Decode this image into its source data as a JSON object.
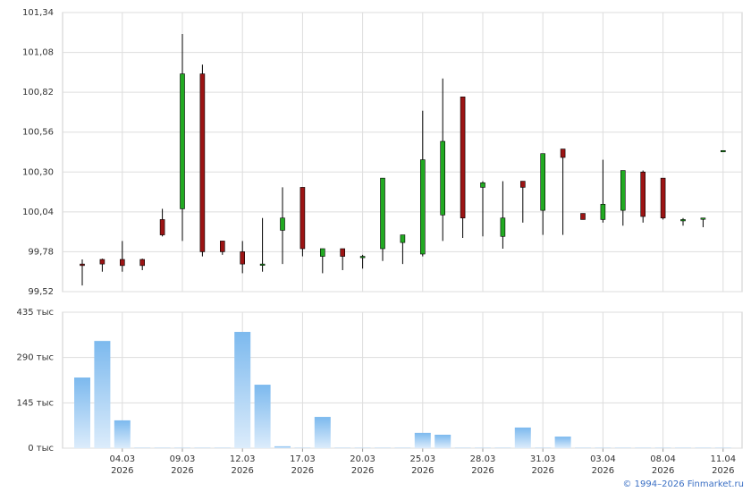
{
  "chart_data": {
    "type": "candlestick",
    "categories": [
      null,
      null,
      "04.03\n2026",
      null,
      null,
      "09.03\n2026",
      null,
      null,
      "12.03\n2026",
      null,
      null,
      "17.03\n2026",
      null,
      null,
      "20.03\n2026",
      null,
      null,
      "25.03\n2026",
      null,
      null,
      "28.03\n2026",
      null,
      null,
      "31.03\n2026",
      null,
      null,
      "03.04\n2026",
      null,
      null,
      "08.04\n2026",
      null,
      null,
      "11.04\n2026"
    ],
    "open": [
      99.7,
      99.73,
      99.73,
      99.73,
      99.99,
      100.06,
      100.94,
      99.85,
      99.78,
      99.7,
      99.92,
      100.2,
      99.75,
      99.8,
      99.75,
      99.8,
      99.84,
      99.765,
      100.02,
      100.79,
      100.2,
      99.88,
      100.24,
      100.05,
      100.45,
      100.03,
      99.99,
      100.05,
      100.3,
      100.26,
      99.99,
      100.0,
      100.44
    ],
    "high": [
      99.73,
      99.735,
      99.85,
      99.735,
      100.06,
      101.2,
      101.0,
      99.85,
      99.85,
      100.0,
      100.2,
      100.2,
      99.8,
      99.8,
      99.76,
      100.26,
      99.89,
      100.7,
      100.91,
      100.79,
      100.24,
      100.24,
      100.24,
      100.42,
      100.45,
      100.03,
      100.38,
      100.31,
      100.31,
      100.26,
      100.0,
      100.0,
      100.44
    ],
    "low": [
      99.56,
      99.65,
      99.65,
      99.66,
      99.88,
      99.85,
      99.75,
      99.76,
      99.64,
      99.65,
      99.7,
      99.75,
      99.64,
      99.66,
      99.67,
      99.72,
      99.7,
      99.75,
      99.85,
      99.87,
      99.88,
      99.8,
      99.97,
      99.89,
      99.89,
      99.99,
      99.97,
      99.95,
      99.97,
      99.99,
      99.95,
      99.94,
      100.44
    ],
    "close": [
      99.69,
      99.7,
      99.69,
      99.69,
      99.89,
      100.94,
      99.78,
      99.78,
      99.7,
      99.7,
      100.0,
      99.8,
      99.8,
      99.75,
      99.75,
      100.26,
      99.89,
      100.38,
      100.5,
      100.0,
      100.23,
      100.0,
      100.2,
      100.42,
      100.395,
      99.99,
      100.09,
      100.31,
      100.01,
      100.0,
      99.99,
      100.0,
      100.44
    ],
    "volume": [
      226,
      343,
      89,
      1,
      1,
      1,
      1,
      1,
      372,
      203,
      6,
      1,
      100,
      1,
      1,
      1,
      1,
      49,
      43,
      1,
      1,
      1,
      66,
      1,
      37,
      1,
      1,
      1,
      1,
      1,
      1,
      1,
      1
    ],
    "up_color": "#22aa22",
    "down_color": "#9c1414",
    "ylim": [
      99.52,
      101.34
    ],
    "yticks": [
      {
        "value": 99.52,
        "label": "99,52"
      },
      {
        "value": 99.78,
        "label": "99,78"
      },
      {
        "value": 100.04,
        "label": "100,04"
      },
      {
        "value": 100.3,
        "label": "100,30"
      },
      {
        "value": 100.56,
        "label": "100,56"
      },
      {
        "value": 100.82,
        "label": "100,82"
      },
      {
        "value": 101.08,
        "label": "101,08"
      },
      {
        "value": 101.34,
        "label": "101,34"
      }
    ],
    "volume_ylim": [
      0,
      435
    ],
    "volume_yticks": [
      {
        "value": 0,
        "label": "0 тыс"
      },
      {
        "value": 145,
        "label": "145 тыс"
      },
      {
        "value": 290,
        "label": "290 тыс"
      },
      {
        "value": 435,
        "label": "435 тыс"
      }
    ],
    "grid": true,
    "credit": "© 1994–2026 Finmarket.ru"
  }
}
